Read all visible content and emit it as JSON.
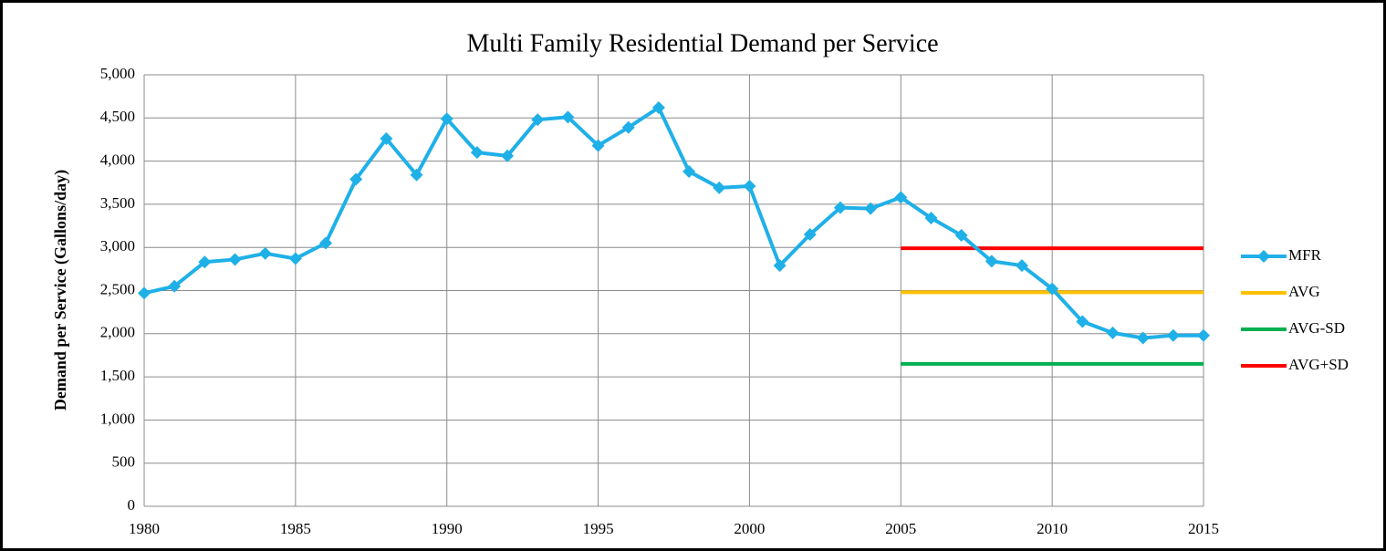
{
  "chart_data": {
    "type": "line",
    "title": "Multi Family Residential Demand per Service",
    "y_label": "Demand per Service (Gallons/day)",
    "xlim": [
      1980,
      2015
    ],
    "xticks": [
      1980,
      1985,
      1990,
      1995,
      2000,
      2005,
      2010,
      2015
    ],
    "ylim": [
      0,
      5000
    ],
    "yticks": [
      0,
      500,
      {
        "value": 1000,
        "label": "1,000"
      },
      {
        "value": 1500,
        "label": "1,500"
      },
      {
        "value": 2000,
        "label": "2,000"
      },
      {
        "value": 2500,
        "label": "2,500"
      },
      {
        "value": 3000,
        "label": "3,000"
      },
      {
        "value": 3500,
        "label": "3,500"
      },
      {
        "value": 4000,
        "label": "4,000"
      },
      {
        "value": 4500,
        "label": "4,500"
      },
      {
        "value": 5000,
        "label": "5,000"
      }
    ],
    "grid": true,
    "legend": "right",
    "series": [
      {
        "name": "MFR",
        "color": "#1fb0e8",
        "marker": "diamond",
        "x": [
          1980,
          1981,
          1982,
          1983,
          1984,
          1985,
          1986,
          1987,
          1988,
          1989,
          1990,
          1991,
          1992,
          1993,
          1994,
          1995,
          1996,
          1997,
          1998,
          1999,
          2000,
          2001,
          2002,
          2003,
          2004,
          2005,
          2006,
          2007,
          2008,
          2009,
          2010,
          2011,
          2012,
          2013,
          2014,
          2015
        ],
        "values": [
          2470,
          2550,
          2830,
          2860,
          2930,
          2870,
          3050,
          3790,
          4260,
          3840,
          4490,
          4100,
          4060,
          4480,
          4510,
          4180,
          4390,
          4620,
          3880,
          3690,
          3710,
          2790,
          3150,
          3460,
          3450,
          3580,
          3340,
          3140,
          2840,
          2790,
          2520,
          2140,
          2010,
          1950,
          1980,
          1980
        ]
      },
      {
        "name": "AVG",
        "color": "#ffc000",
        "x": [
          2005,
          2015
        ],
        "values": [
          2480,
          2480
        ]
      },
      {
        "name": "AVG-SD",
        "color": "#00b050",
        "x": [
          2005,
          2015
        ],
        "values": [
          1650,
          1650
        ]
      },
      {
        "name": "AVG+SD",
        "color": "#ff0000",
        "x": [
          2005,
          2015
        ],
        "values": [
          2990,
          2990
        ]
      }
    ]
  }
}
